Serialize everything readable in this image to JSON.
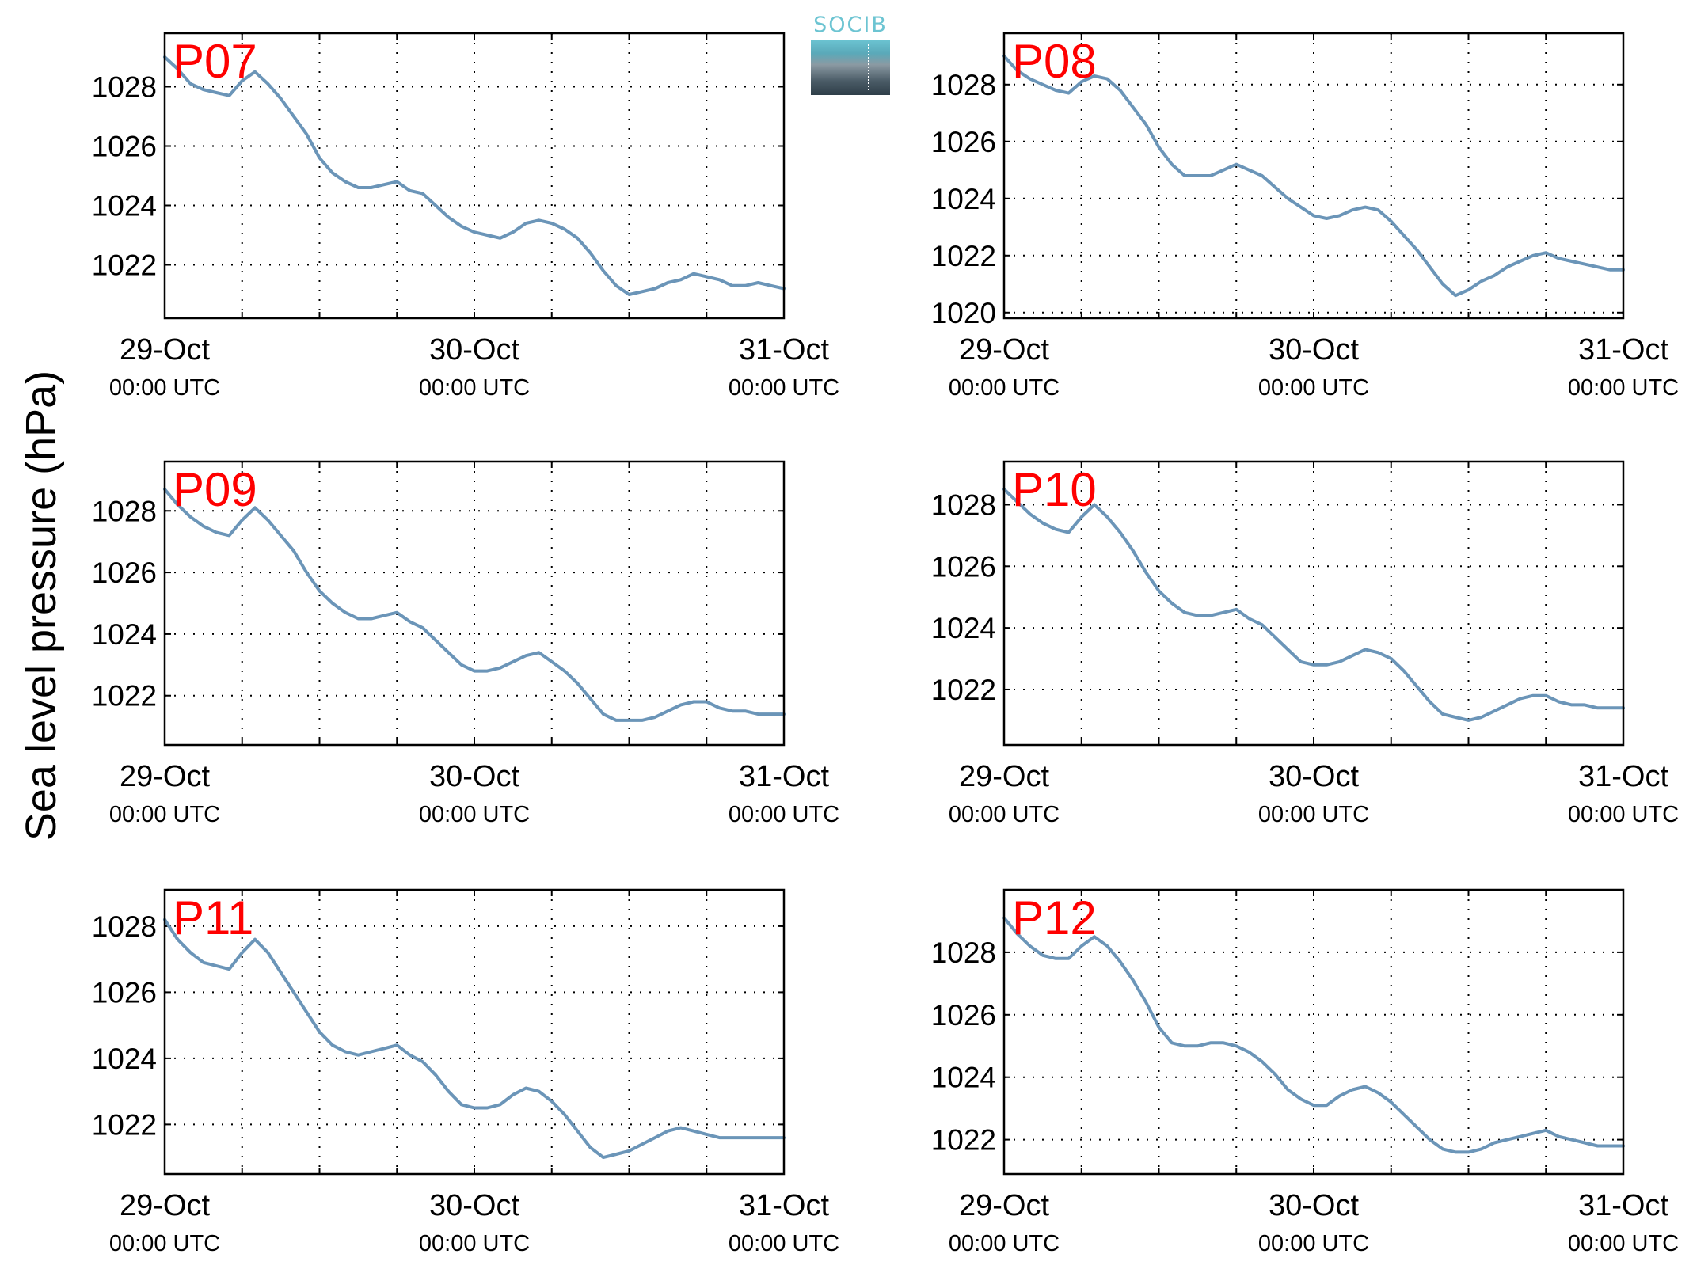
{
  "figure": {
    "ylabel": "Sea level pressure (hPa)",
    "logo_text": "SOCIB",
    "colors": {
      "line": "#6b95b8",
      "panel_label": "#ff0000",
      "logo_accent": "#6cc4d2"
    }
  },
  "chart_data": [
    {
      "type": "line",
      "panel_label": "P07",
      "x_tick_dates": [
        "29-Oct",
        "30-Oct",
        "31-Oct"
      ],
      "x_tick_times": [
        "00:00 UTC",
        "00:00 UTC",
        "00:00 UTC"
      ],
      "xlim": [
        0,
        48
      ],
      "ylim": [
        1020.2,
        1029.8
      ],
      "yticks": [
        1022,
        1024,
        1026,
        1028
      ],
      "grid": true,
      "series": [
        {
          "x": [
            0,
            1,
            2,
            3,
            4,
            5,
            6,
            7,
            8,
            9,
            10,
            11,
            12,
            13,
            14,
            15,
            16,
            17,
            18,
            19,
            20,
            21,
            22,
            23,
            24,
            25,
            26,
            27,
            28,
            29,
            30,
            31,
            32,
            33,
            34,
            35,
            36,
            37,
            38,
            39,
            40,
            41,
            42,
            43,
            44,
            45,
            46,
            47,
            48
          ],
          "values": [
            1029.0,
            1028.6,
            1028.1,
            1027.9,
            1027.8,
            1027.7,
            1028.2,
            1028.5,
            1028.1,
            1027.6,
            1027.0,
            1026.4,
            1025.6,
            1025.1,
            1024.8,
            1024.6,
            1024.6,
            1024.7,
            1024.8,
            1024.5,
            1024.4,
            1024.0,
            1023.6,
            1023.3,
            1023.1,
            1023.0,
            1022.9,
            1023.1,
            1023.4,
            1023.5,
            1023.4,
            1023.2,
            1022.9,
            1022.4,
            1021.8,
            1021.3,
            1021.0,
            1021.1,
            1021.2,
            1021.4,
            1021.5,
            1021.7,
            1021.6,
            1021.5,
            1021.3,
            1021.3,
            1021.4,
            1021.3,
            1021.2
          ]
        }
      ]
    },
    {
      "type": "line",
      "panel_label": "P08",
      "x_tick_dates": [
        "29-Oct",
        "30-Oct",
        "31-Oct"
      ],
      "x_tick_times": [
        "00:00 UTC",
        "00:00 UTC",
        "00:00 UTC"
      ],
      "xlim": [
        0,
        48
      ],
      "ylim": [
        1019.8,
        1029.8
      ],
      "yticks": [
        1020,
        1022,
        1024,
        1026,
        1028
      ],
      "grid": true,
      "series": [
        {
          "x": [
            0,
            1,
            2,
            3,
            4,
            5,
            6,
            7,
            8,
            9,
            10,
            11,
            12,
            13,
            14,
            15,
            16,
            17,
            18,
            19,
            20,
            21,
            22,
            23,
            24,
            25,
            26,
            27,
            28,
            29,
            30,
            31,
            32,
            33,
            34,
            35,
            36,
            37,
            38,
            39,
            40,
            41,
            42,
            43,
            44,
            45,
            46,
            47,
            48
          ],
          "values": [
            1029.0,
            1028.5,
            1028.2,
            1028.0,
            1027.8,
            1027.7,
            1028.1,
            1028.3,
            1028.2,
            1027.8,
            1027.2,
            1026.6,
            1025.8,
            1025.2,
            1024.8,
            1024.8,
            1024.8,
            1025.0,
            1025.2,
            1025.0,
            1024.8,
            1024.4,
            1024.0,
            1023.7,
            1023.4,
            1023.3,
            1023.4,
            1023.6,
            1023.7,
            1023.6,
            1023.2,
            1022.7,
            1022.2,
            1021.6,
            1021.0,
            1020.6,
            1020.8,
            1021.1,
            1021.3,
            1021.6,
            1021.8,
            1022.0,
            1022.1,
            1021.9,
            1021.8,
            1021.7,
            1021.6,
            1021.5,
            1021.5
          ]
        }
      ]
    },
    {
      "type": "line",
      "panel_label": "P09",
      "x_tick_dates": [
        "29-Oct",
        "30-Oct",
        "31-Oct"
      ],
      "x_tick_times": [
        "00:00 UTC",
        "00:00 UTC",
        "00:00 UTC"
      ],
      "xlim": [
        0,
        48
      ],
      "ylim": [
        1020.4,
        1029.6
      ],
      "yticks": [
        1022,
        1024,
        1026,
        1028
      ],
      "grid": true,
      "series": [
        {
          "x": [
            0,
            1,
            2,
            3,
            4,
            5,
            6,
            7,
            8,
            9,
            10,
            11,
            12,
            13,
            14,
            15,
            16,
            17,
            18,
            19,
            20,
            21,
            22,
            23,
            24,
            25,
            26,
            27,
            28,
            29,
            30,
            31,
            32,
            33,
            34,
            35,
            36,
            37,
            38,
            39,
            40,
            41,
            42,
            43,
            44,
            45,
            46,
            47,
            48
          ],
          "values": [
            1028.7,
            1028.2,
            1027.8,
            1027.5,
            1027.3,
            1027.2,
            1027.7,
            1028.1,
            1027.7,
            1027.2,
            1026.7,
            1026.0,
            1025.4,
            1025.0,
            1024.7,
            1024.5,
            1024.5,
            1024.6,
            1024.7,
            1024.4,
            1024.2,
            1023.8,
            1023.4,
            1023.0,
            1022.8,
            1022.8,
            1022.9,
            1023.1,
            1023.3,
            1023.4,
            1023.1,
            1022.8,
            1022.4,
            1021.9,
            1021.4,
            1021.2,
            1021.2,
            1021.2,
            1021.3,
            1021.5,
            1021.7,
            1021.8,
            1021.8,
            1021.6,
            1021.5,
            1021.5,
            1021.4,
            1021.4,
            1021.4
          ]
        }
      ]
    },
    {
      "type": "line",
      "panel_label": "P10",
      "x_tick_dates": [
        "29-Oct",
        "30-Oct",
        "31-Oct"
      ],
      "x_tick_times": [
        "00:00 UTC",
        "00:00 UTC",
        "00:00 UTC"
      ],
      "xlim": [
        0,
        48
      ],
      "ylim": [
        1020.2,
        1029.4
      ],
      "yticks": [
        1022,
        1024,
        1026,
        1028
      ],
      "grid": true,
      "series": [
        {
          "x": [
            0,
            1,
            2,
            3,
            4,
            5,
            6,
            7,
            8,
            9,
            10,
            11,
            12,
            13,
            14,
            15,
            16,
            17,
            18,
            19,
            20,
            21,
            22,
            23,
            24,
            25,
            26,
            27,
            28,
            29,
            30,
            31,
            32,
            33,
            34,
            35,
            36,
            37,
            38,
            39,
            40,
            41,
            42,
            43,
            44,
            45,
            46,
            47,
            48
          ],
          "values": [
            1028.5,
            1028.1,
            1027.7,
            1027.4,
            1027.2,
            1027.1,
            1027.6,
            1028.0,
            1027.6,
            1027.1,
            1026.5,
            1025.8,
            1025.2,
            1024.8,
            1024.5,
            1024.4,
            1024.4,
            1024.5,
            1024.6,
            1024.3,
            1024.1,
            1023.7,
            1023.3,
            1022.9,
            1022.8,
            1022.8,
            1022.9,
            1023.1,
            1023.3,
            1023.2,
            1023.0,
            1022.6,
            1022.1,
            1021.6,
            1021.2,
            1021.1,
            1021.0,
            1021.1,
            1021.3,
            1021.5,
            1021.7,
            1021.8,
            1021.8,
            1021.6,
            1021.5,
            1021.5,
            1021.4,
            1021.4,
            1021.4
          ]
        }
      ]
    },
    {
      "type": "line",
      "panel_label": "P11",
      "x_tick_dates": [
        "29-Oct",
        "30-Oct",
        "31-Oct"
      ],
      "x_tick_times": [
        "00:00 UTC",
        "00:00 UTC",
        "00:00 UTC"
      ],
      "xlim": [
        0,
        48
      ],
      "ylim": [
        1020.5,
        1029.1
      ],
      "yticks": [
        1022,
        1024,
        1026,
        1028
      ],
      "grid": true,
      "series": [
        {
          "x": [
            0,
            1,
            2,
            3,
            4,
            5,
            6,
            7,
            8,
            9,
            10,
            11,
            12,
            13,
            14,
            15,
            16,
            17,
            18,
            19,
            20,
            21,
            22,
            23,
            24,
            25,
            26,
            27,
            28,
            29,
            30,
            31,
            32,
            33,
            34,
            35,
            36,
            37,
            38,
            39,
            40,
            41,
            42,
            43,
            44,
            45,
            46,
            47,
            48
          ],
          "values": [
            1028.2,
            1027.6,
            1027.2,
            1026.9,
            1026.8,
            1026.7,
            1027.2,
            1027.6,
            1027.2,
            1026.6,
            1026.0,
            1025.4,
            1024.8,
            1024.4,
            1024.2,
            1024.1,
            1024.2,
            1024.3,
            1024.4,
            1024.1,
            1023.9,
            1023.5,
            1023.0,
            1022.6,
            1022.5,
            1022.5,
            1022.6,
            1022.9,
            1023.1,
            1023.0,
            1022.7,
            1022.3,
            1021.8,
            1021.3,
            1021.0,
            1021.1,
            1021.2,
            1021.4,
            1021.6,
            1021.8,
            1021.9,
            1021.8,
            1021.7,
            1021.6,
            1021.6,
            1021.6,
            1021.6,
            1021.6,
            1021.6
          ]
        }
      ]
    },
    {
      "type": "line",
      "panel_label": "P12",
      "x_tick_dates": [
        "29-Oct",
        "30-Oct",
        "31-Oct"
      ],
      "x_tick_times": [
        "00:00 UTC",
        "00:00 UTC",
        "00:00 UTC"
      ],
      "xlim": [
        0,
        48
      ],
      "ylim": [
        1020.9,
        1030.0
      ],
      "yticks": [
        1022,
        1024,
        1026,
        1028
      ],
      "grid": true,
      "series": [
        {
          "x": [
            0,
            1,
            2,
            3,
            4,
            5,
            6,
            7,
            8,
            9,
            10,
            11,
            12,
            13,
            14,
            15,
            16,
            17,
            18,
            19,
            20,
            21,
            22,
            23,
            24,
            25,
            26,
            27,
            28,
            29,
            30,
            31,
            32,
            33,
            34,
            35,
            36,
            37,
            38,
            39,
            40,
            41,
            42,
            43,
            44,
            45,
            46,
            47,
            48
          ],
          "values": [
            1029.1,
            1028.6,
            1028.2,
            1027.9,
            1027.8,
            1027.8,
            1028.2,
            1028.5,
            1028.2,
            1027.7,
            1027.1,
            1026.4,
            1025.6,
            1025.1,
            1025.0,
            1025.0,
            1025.1,
            1025.1,
            1025.0,
            1024.8,
            1024.5,
            1024.1,
            1023.6,
            1023.3,
            1023.1,
            1023.1,
            1023.4,
            1023.6,
            1023.7,
            1023.5,
            1023.2,
            1022.8,
            1022.4,
            1022.0,
            1021.7,
            1021.6,
            1021.6,
            1021.7,
            1021.9,
            1022.0,
            1022.1,
            1022.2,
            1022.3,
            1022.1,
            1022.0,
            1021.9,
            1021.8,
            1021.8,
            1021.8
          ]
        }
      ]
    }
  ]
}
